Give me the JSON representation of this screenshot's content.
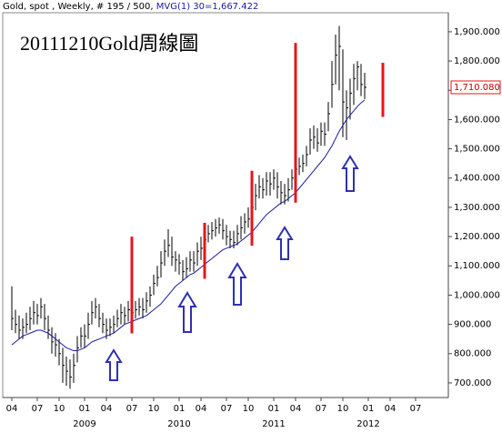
{
  "chart_data": {
    "type": "ohlc",
    "header": "Gold, spot , Weekly, # 195 / 500, ",
    "ma_label": "MVG(1) 30=1,667.422",
    "title": "20111210Gold周線圖",
    "categories": [
      "04",
      null,
      null,
      null,
      null,
      null,
      null,
      "07",
      null,
      null,
      null,
      null,
      null,
      "10",
      null,
      null,
      null,
      null,
      null,
      null,
      "01",
      null,
      null,
      null,
      null,
      null,
      "04",
      null,
      null,
      null,
      null,
      null,
      null,
      "07",
      null,
      null,
      null,
      null,
      null,
      "10",
      null,
      null,
      null,
      null,
      null,
      null,
      "01",
      null,
      null,
      null,
      null,
      null,
      "04",
      null,
      null,
      null,
      null,
      null,
      null,
      "07",
      null,
      null,
      null,
      null,
      null,
      "10",
      null,
      null,
      null,
      null,
      null,
      null,
      "01",
      null,
      null,
      null,
      null,
      null,
      "04",
      null,
      null,
      null,
      null,
      null,
      null,
      "07",
      null,
      null,
      null,
      null,
      null,
      "10",
      null,
      null,
      null,
      null,
      null,
      null,
      "01",
      null,
      null,
      null,
      null,
      null,
      "04",
      null,
      null,
      null,
      null,
      null,
      null,
      "07",
      null,
      null,
      null,
      null,
      null,
      null,
      null,
      null
    ],
    "years": [
      null,
      null,
      null,
      null,
      null,
      null,
      null,
      null,
      null,
      null,
      null,
      null,
      null,
      null,
      null,
      null,
      null,
      null,
      null,
      null,
      "2009",
      null,
      null,
      null,
      null,
      null,
      null,
      null,
      null,
      null,
      null,
      null,
      null,
      null,
      null,
      null,
      null,
      null,
      null,
      null,
      null,
      null,
      null,
      null,
      null,
      null,
      "2010",
      null,
      null,
      null,
      null,
      null,
      null,
      null,
      null,
      null,
      null,
      null,
      null,
      null,
      null,
      null,
      null,
      null,
      null,
      null,
      null,
      null,
      null,
      null,
      null,
      null,
      "2011",
      null,
      null,
      null,
      null,
      null,
      null,
      null,
      null,
      null,
      null,
      null,
      null,
      null,
      null,
      null,
      null,
      null,
      null,
      null,
      null,
      null,
      null,
      null,
      null,
      null,
      "2012",
      null,
      null,
      null,
      null,
      null,
      null,
      null,
      null,
      null,
      null,
      null,
      null,
      null,
      null,
      null,
      null,
      null,
      null,
      null,
      null,
      null
    ],
    "series": [
      {
        "color": "#000000",
        "high": [
          1030,
          950,
          930,
          920,
          940,
          960,
          980,
          970,
          990,
          970,
          930,
          890,
          870,
          850,
          820,
          790,
          780,
          800,
          860,
          890,
          900,
          940,
          980,
          990,
          970,
          940,
          920,
          920,
          930,
          950,
          970,
          960,
          980,
          970,
          980,
          990,
          990,
          1010,
          1030,
          1070,
          1100,
          1150,
          1190,
          1225,
          1200,
          1150,
          1140,
          1120,
          1130,
          1150,
          1150,
          1180,
          1200,
          1220,
          1240,
          1250,
          1260,
          1265,
          1260,
          1240,
          1220,
          1220,
          1240,
          1270,
          1280,
          1300,
          1340,
          1380,
          1410,
          1400,
          1420,
          1420,
          1430,
          1420,
          1390,
          1380,
          1400,
          1430,
          1460,
          1470,
          1480,
          1510,
          1570,
          1580,
          1570,
          1590,
          1590,
          1660,
          1800,
          1890,
          1920,
          1840,
          1700,
          1740,
          1790,
          1800,
          1790,
          1760,
          null,
          null,
          null,
          null,
          null,
          null,
          null,
          null,
          null,
          null,
          null,
          null,
          null,
          null,
          null,
          null,
          null,
          null,
          null,
          null,
          null,
          null
        ],
        "low": [
          880,
          870,
          850,
          850,
          870,
          880,
          900,
          900,
          920,
          880,
          850,
          800,
          790,
          760,
          700,
          690,
          680,
          700,
          770,
          820,
          820,
          850,
          900,
          920,
          890,
          870,
          850,
          860,
          870,
          890,
          900,
          900,
          910,
          910,
          920,
          930,
          920,
          940,
          960,
          1000,
          1030,
          1060,
          1100,
          1130,
          1100,
          1080,
          1070,
          1050,
          1060,
          1080,
          1080,
          1100,
          1120,
          1150,
          1180,
          1190,
          1200,
          1210,
          1190,
          1170,
          1160,
          1160,
          1170,
          1190,
          1210,
          1230,
          1260,
          1290,
          1330,
          1330,
          1340,
          1340,
          1360,
          1330,
          1310,
          1310,
          1320,
          1360,
          1390,
          1410,
          1420,
          1440,
          1480,
          1500,
          1490,
          1510,
          1510,
          1560,
          1640,
          1720,
          1700,
          1540,
          1530,
          1600,
          1650,
          1700,
          1680,
          1670,
          null,
          null,
          null,
          null,
          null,
          null,
          null,
          null,
          null,
          null,
          null,
          null,
          null,
          null,
          null,
          null,
          null,
          null,
          null,
          null,
          null,
          null
        ],
        "close": [
          920,
          900,
          880,
          890,
          900,
          920,
          940,
          930,
          960,
          920,
          880,
          840,
          830,
          800,
          760,
          740,
          720,
          760,
          820,
          860,
          860,
          900,
          940,
          960,
          920,
          900,
          880,
          890,
          900,
          920,
          940,
          930,
          950,
          940,
          950,
          960,
          950,
          980,
          1000,
          1040,
          1060,
          1110,
          1150,
          1170,
          1130,
          1120,
          1110,
          1080,
          1090,
          1120,
          1110,
          1150,
          1160,
          1190,
          1210,
          1220,
          1230,
          1240,
          1220,
          1200,
          1190,
          1180,
          1210,
          1230,
          1250,
          1260,
          1300,
          1340,
          1370,
          1360,
          1390,
          1380,
          1400,
          1370,
          1350,
          1340,
          1360,
          1400,
          1430,
          1440,
          1450,
          1480,
          1530,
          1540,
          1520,
          1560,
          1550,
          1620,
          1720,
          1820,
          1850,
          1660,
          1640,
          1690,
          1740,
          1780,
          1720,
          1710,
          null,
          null,
          null,
          null,
          null,
          null,
          null,
          null,
          null,
          null,
          null,
          null,
          null,
          null,
          null,
          null,
          null,
          null,
          null,
          null,
          null,
          null
        ]
      }
    ],
    "ma": {
      "color": "#1a1aa0",
      "values": [
        830,
        840,
        850,
        860,
        865,
        870,
        875,
        880,
        880,
        875,
        870,
        860,
        850,
        840,
        830,
        820,
        815,
        810,
        810,
        815,
        820,
        830,
        840,
        845,
        850,
        855,
        860,
        865,
        870,
        880,
        890,
        900,
        905,
        910,
        915,
        920,
        925,
        930,
        940,
        950,
        960,
        970,
        985,
        1000,
        1015,
        1030,
        1040,
        1050,
        1060,
        1070,
        1075,
        1085,
        1095,
        1105,
        1115,
        1125,
        1135,
        1145,
        1155,
        1160,
        1165,
        1170,
        1175,
        1185,
        1195,
        1205,
        1215,
        1230,
        1245,
        1260,
        1275,
        1285,
        1295,
        1305,
        1315,
        1320,
        1330,
        1340,
        1350,
        1365,
        1380,
        1395,
        1410,
        1425,
        1440,
        1455,
        1470,
        1490,
        1510,
        1535,
        1560,
        1580,
        1600,
        1615,
        1630,
        1645,
        1657,
        1667,
        null,
        null,
        null,
        null,
        null,
        null,
        null,
        null,
        null,
        null,
        null,
        null,
        null,
        null,
        null,
        null,
        null,
        null,
        null,
        null,
        null,
        null
      ]
    },
    "red_lines": {
      "color": "#e8141c",
      "index": [
        33,
        53,
        66,
        78,
        102
      ],
      "high": [
        1200,
        1247,
        1425,
        1862,
        1794
      ],
      "low": [
        869,
        1056,
        1169,
        1316,
        1609
      ]
    },
    "last_price": {
      "value": 1710.08,
      "label": "1,710.080"
    },
    "ylim": [
      650,
      1965
    ],
    "yticks": [
      {
        "value": 700,
        "label": "700.000"
      },
      {
        "value": 800,
        "label": "800.000"
      },
      {
        "value": 900,
        "label": "900.000"
      },
      {
        "value": 1000,
        "label": "1,000.000"
      },
      {
        "value": 1100,
        "label": "1,100.000"
      },
      {
        "value": 1200,
        "label": "1,200.000"
      },
      {
        "value": 1300,
        "label": "1,300.000"
      },
      {
        "value": 1400,
        "label": "1,400.000"
      },
      {
        "value": 1500,
        "label": "1,500.000"
      },
      {
        "value": 1600,
        "label": "1,600.000"
      },
      {
        "value": 1700,
        "label": "1,700.000"
      },
      {
        "value": 1800,
        "label": "1,800.000"
      },
      {
        "value": 1900,
        "label": "1,900.000"
      }
    ]
  }
}
